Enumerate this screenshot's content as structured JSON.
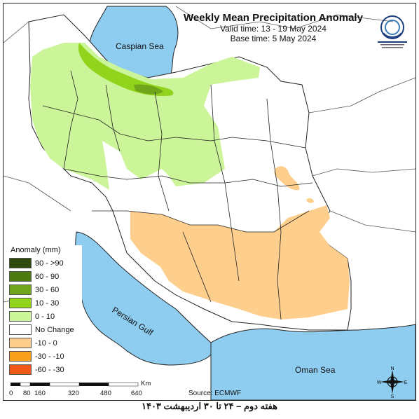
{
  "title": "Weekly Mean Precipitation Anomaly",
  "valid_time": "Valid time: 13 - 19 May 2024",
  "base_time": "Base time: 5 May 2024",
  "labels": {
    "caspian": "Caspian Sea",
    "gulf": "Persian Gulf",
    "oman": "Oman Sea"
  },
  "legend": {
    "title": "Anomaly (mm)",
    "items": [
      {
        "label": "90 - >90",
        "color": "#2f4a0c"
      },
      {
        "label": "60 - 90",
        "color": "#4e7a12"
      },
      {
        "label": "30 - 60",
        "color": "#6fa51a"
      },
      {
        "label": "10 - 30",
        "color": "#92d41c"
      },
      {
        "label": "0 - 10",
        "color": "#ccf59a"
      },
      {
        "label": "No Change",
        "color": "#ffffff"
      },
      {
        "label": "-10 - 0",
        "color": "#fdce8c"
      },
      {
        "label": "-30 - -10",
        "color": "#f9a01d"
      },
      {
        "label": "-60 - -30",
        "color": "#ef5b16"
      }
    ]
  },
  "scale": {
    "ticks": [
      "0",
      "80",
      "160",
      "320",
      "480",
      "640"
    ],
    "unit": "Km"
  },
  "source": "Source: ECMWF",
  "compass": {
    "n": "N",
    "s": "S",
    "e": "E",
    "w": "W"
  },
  "footer": "هفته دوم – ۲۴ تا ۳۰ اردیبهشت ۱۴۰۳",
  "colors": {
    "sea": "#8ecdf0",
    "land": "#ffffff",
    "border": "#222222"
  }
}
